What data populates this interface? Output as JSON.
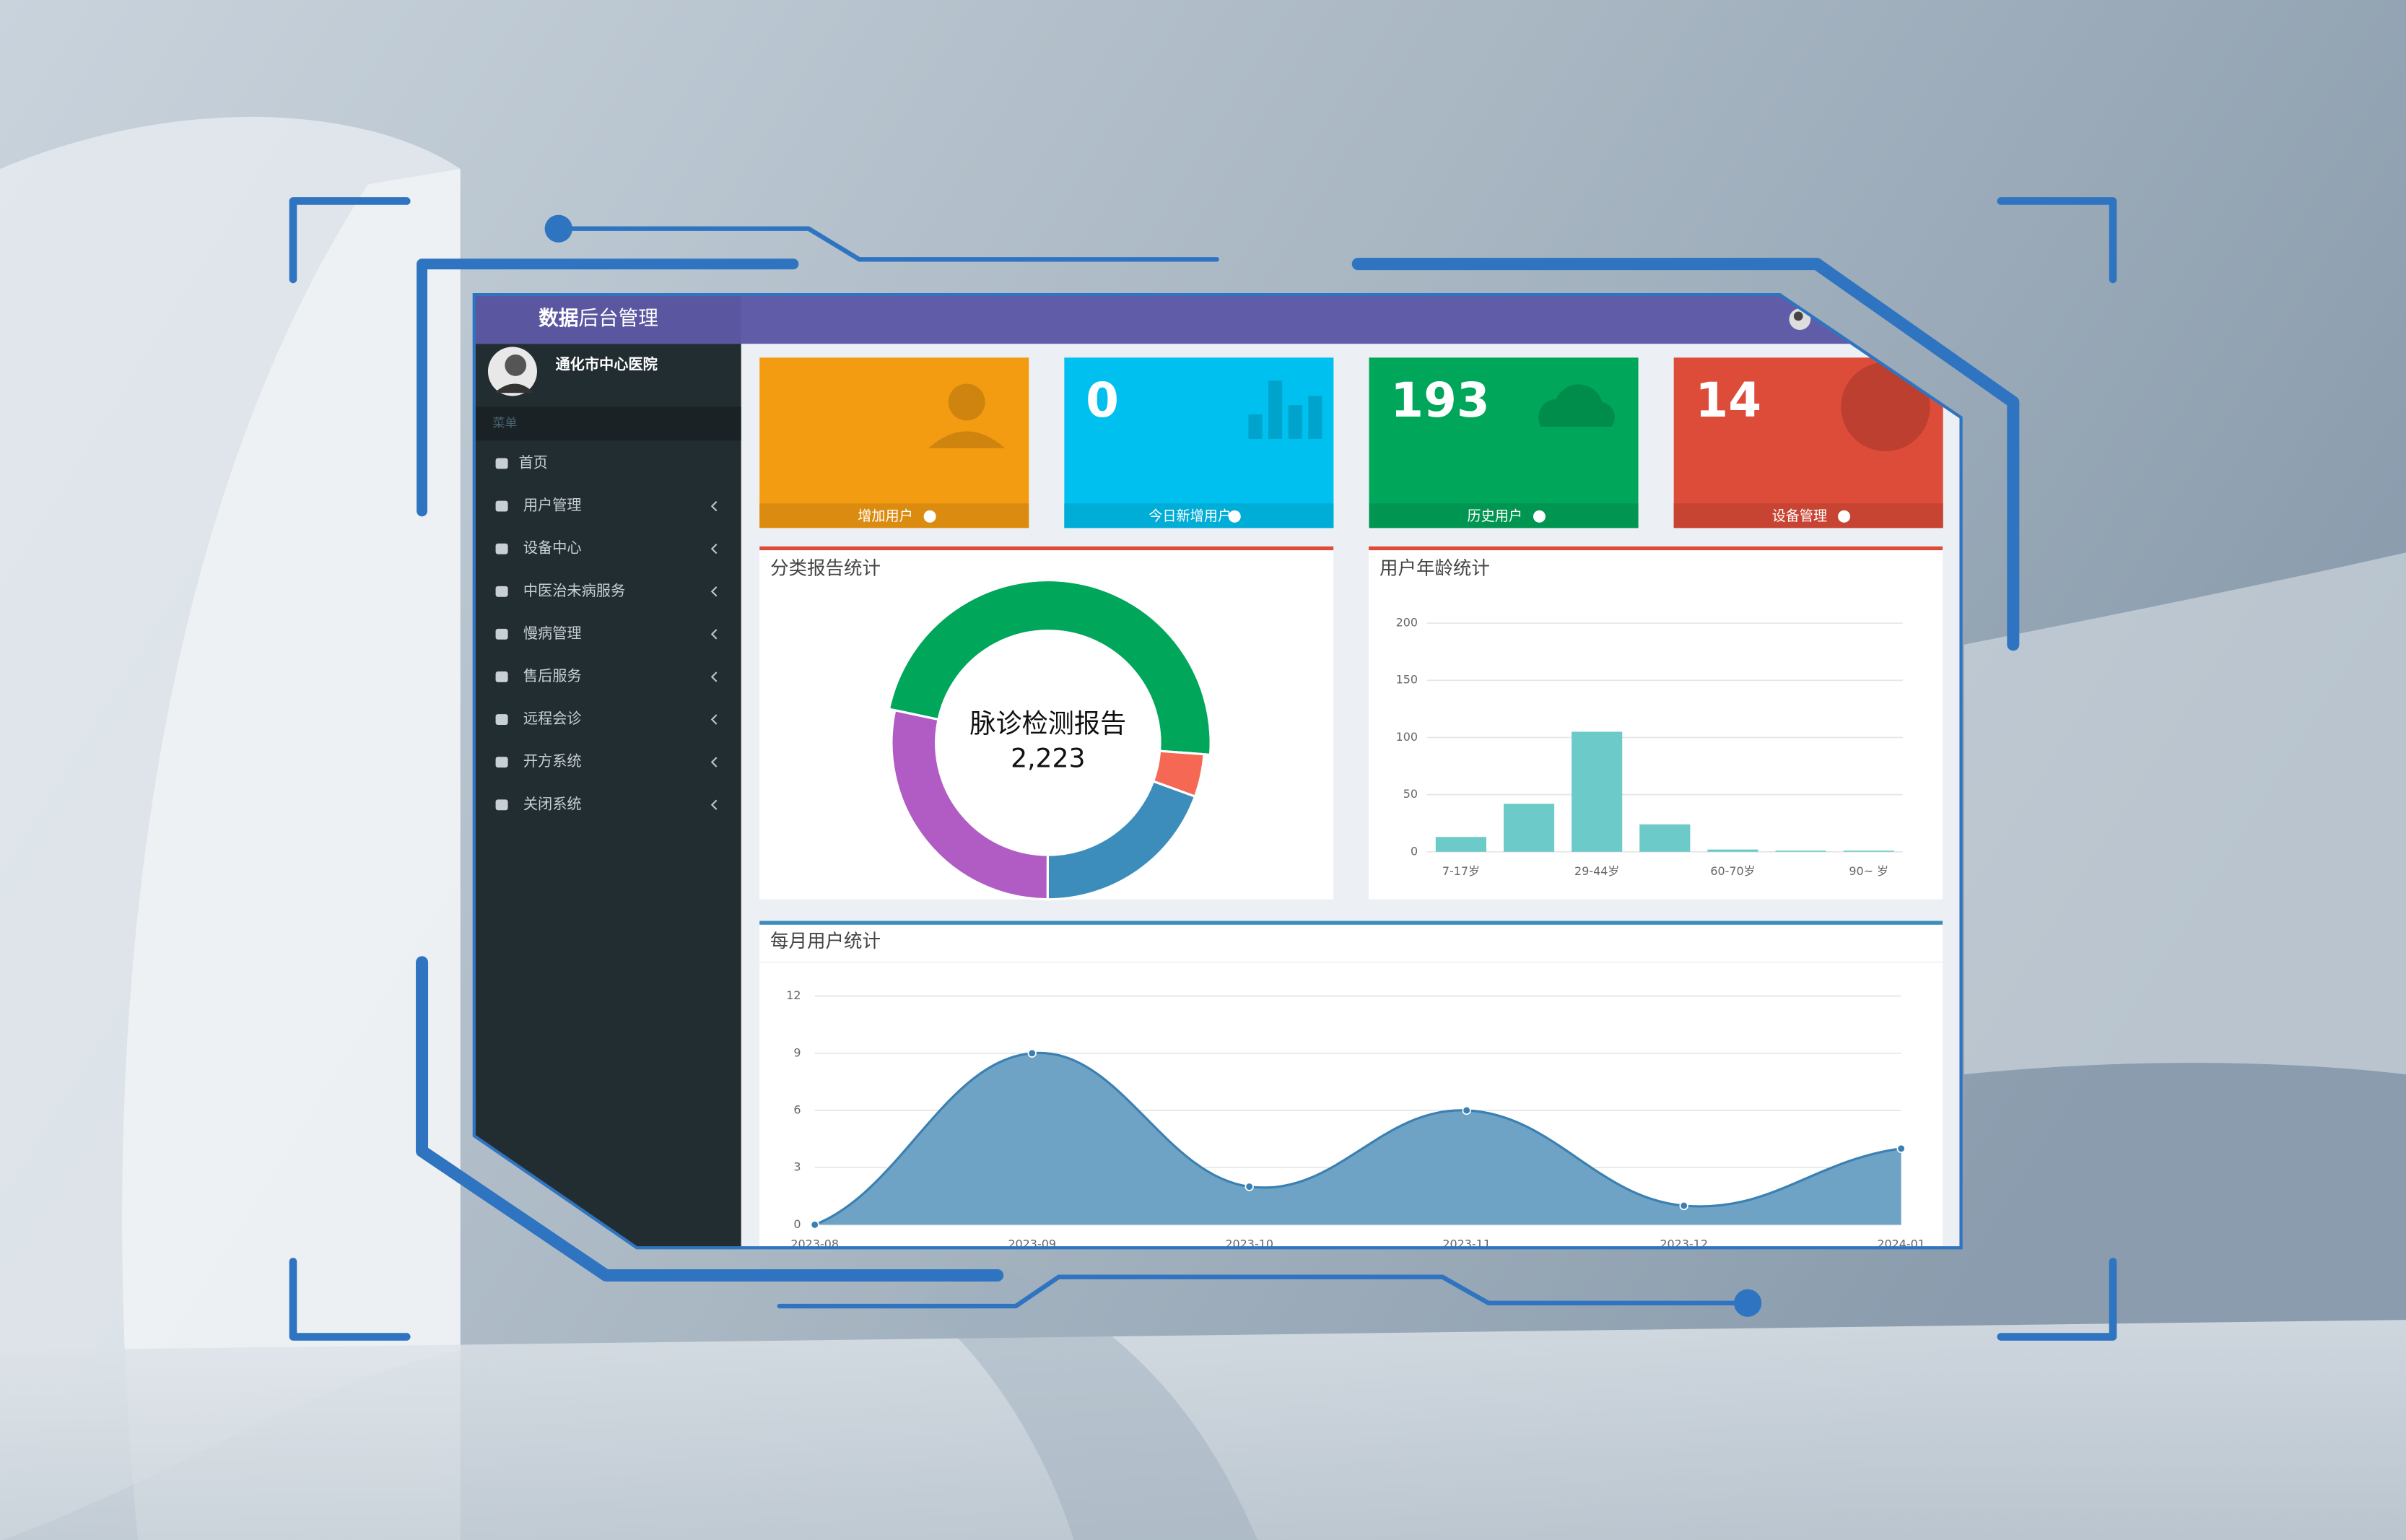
{
  "header": {
    "title_bold": "数据",
    "title": "后台管理"
  },
  "sidebar": {
    "user": "通化市中心医院",
    "menu_label": "菜单",
    "items": [
      "首页",
      "用户管理",
      "设备中心",
      "中医治未病服务",
      "慢病管理",
      "售后服务",
      "远程会诊",
      "开方系统",
      "关闭系统"
    ]
  },
  "cards": [
    {
      "label": "增加用户",
      "color": "#f39c12"
    },
    {
      "value": 0,
      "label": "今日新增用户",
      "color": "#00c0ef"
    },
    {
      "value": 193,
      "label": "历史用户",
      "color": "#00a65a"
    },
    {
      "value": 14,
      "label": "设备管理",
      "color": "#dd4b39"
    }
  ],
  "donut_chart": {
    "type": "doughnut",
    "title": "分类报告统计",
    "center_label": "脉诊检测报告",
    "values": [
      2223,
      205,
      905,
      1315
    ],
    "value_labels": [
      "2,223",
      null,
      null,
      null
    ],
    "colors": [
      "#00a65a",
      "#f56954",
      "#3c8dbc",
      "#b15bc4"
    ]
  },
  "age_chart": {
    "type": "bar",
    "title": "用户年龄统计",
    "categories": [
      "7-17岁",
      null,
      "29-44岁",
      null,
      "60-70岁",
      null,
      "90~ 岁"
    ],
    "values": [
      13,
      42,
      105,
      24,
      2,
      1,
      1
    ],
    "color": "#6ccac9",
    "ylim": [
      0,
      200
    ],
    "yticks": [
      0,
      50,
      100,
      150,
      200
    ],
    "grid": true
  },
  "monthly_chart": {
    "type": "area",
    "title": "每月用户统计",
    "categories": [
      "2023-08",
      "2023-09",
      "2023-10",
      "2023-11",
      "2023-12",
      "2024-01"
    ],
    "values": [
      0,
      9,
      2,
      6,
      1,
      4
    ],
    "color": "#6fa3c5",
    "line_color": "#3b80b2",
    "ylim": [
      0,
      12
    ],
    "yticks": [
      0,
      3,
      6,
      9,
      12
    ],
    "grid": true
  }
}
